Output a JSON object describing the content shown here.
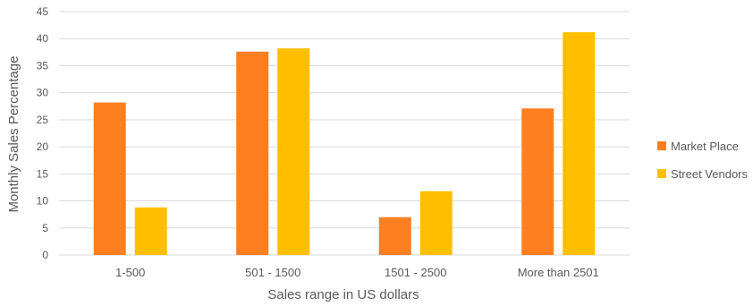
{
  "colors": {
    "market_place": "#fd7f20",
    "street_vendors": "#ffbf00",
    "grid": "#d9d9d9",
    "text": "#595959"
  },
  "chart_data": {
    "type": "bar",
    "title": "",
    "xlabel": "Sales range in US dollars",
    "ylabel": "Monthly Sales Percentage",
    "ylim": [
      0,
      45
    ],
    "yticks": [
      "0",
      "5",
      "10",
      "15",
      "20",
      "25",
      "30",
      "35",
      "40",
      "45"
    ],
    "categories": [
      "1-500",
      "501 - 1500",
      "1501 - 2500",
      "More than 2501"
    ],
    "series": [
      {
        "name": "Market Place",
        "values": [
          28.2,
          37.6,
          7.0,
          27.1
        ]
      },
      {
        "name": "Street Vendors",
        "values": [
          8.8,
          38.2,
          11.8,
          41.2
        ]
      }
    ],
    "grid": true,
    "legend_position": "right"
  }
}
